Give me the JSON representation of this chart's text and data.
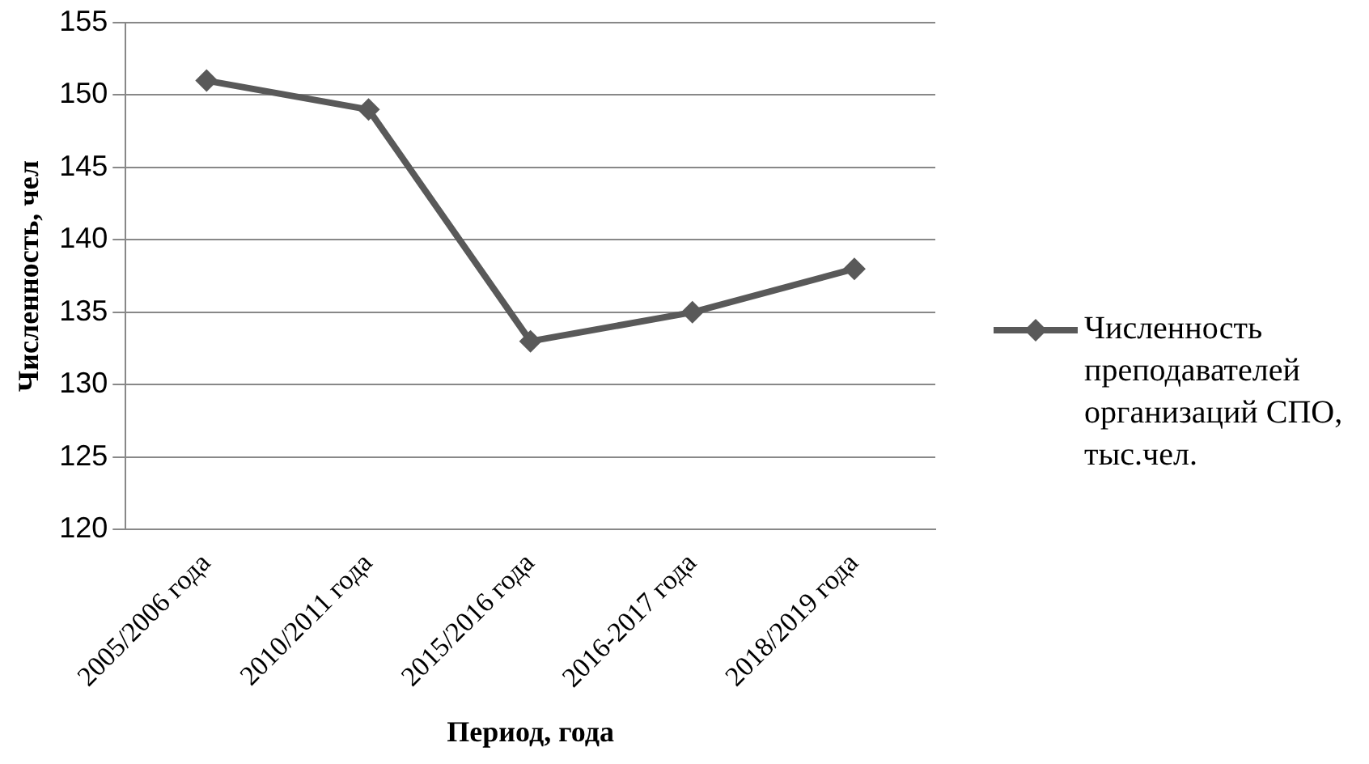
{
  "chart_data": {
    "type": "line",
    "xlabel": "Период, года",
    "ylabel": "Численность, чел",
    "categories": [
      "2005/2006 года",
      "2010/2011 года",
      "2015/2016 года",
      "2016-2017 года",
      "2018/2019 года"
    ],
    "series": [
      {
        "name": "Численность преподавателей организаций СПО, тыс.чел.",
        "color": "#595959",
        "values": [
          151,
          149,
          133,
          135,
          138
        ]
      }
    ],
    "ylim": [
      120,
      155
    ],
    "yticks": [
      120,
      125,
      130,
      135,
      140,
      145,
      150,
      155
    ],
    "grid": "y",
    "legend": "right",
    "marker": "diamond",
    "line_style": "solid"
  }
}
